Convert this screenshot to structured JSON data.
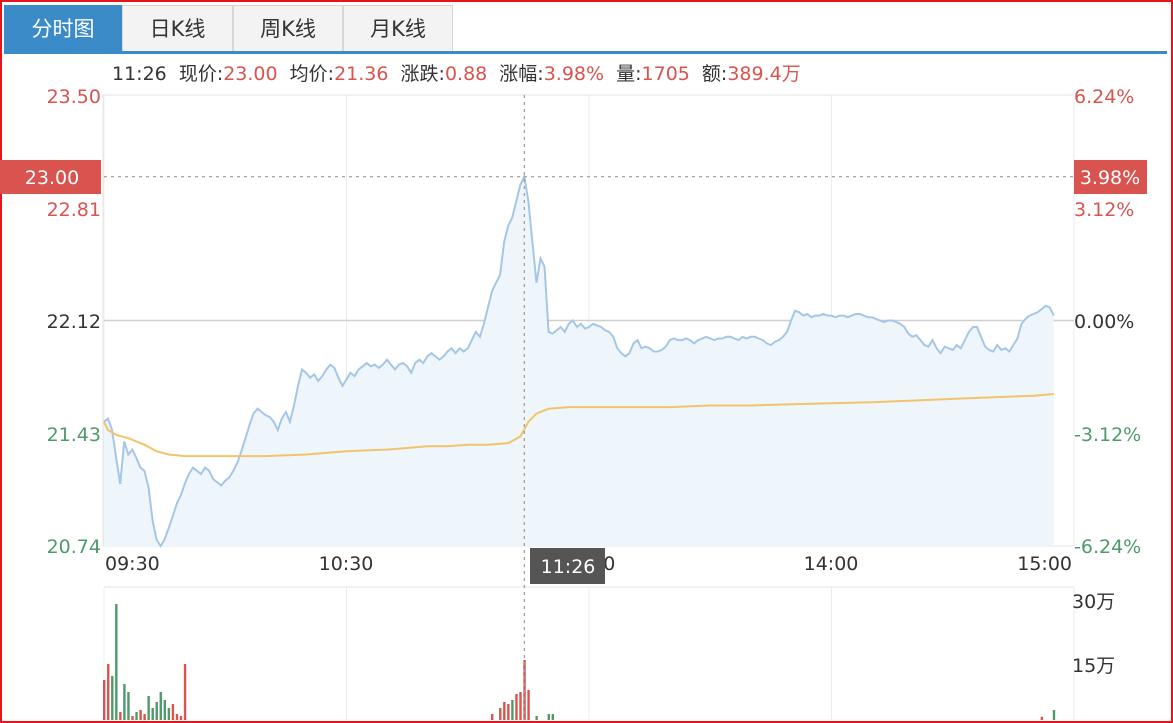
{
  "tabs": [
    {
      "label": "分时图",
      "active": true
    },
    {
      "label": "日K线",
      "active": false
    },
    {
      "label": "周K线",
      "active": false
    },
    {
      "label": "月K线",
      "active": false
    }
  ],
  "info_bar": {
    "time": "11:26",
    "price_label": "现价:",
    "price": "23.00",
    "avg_label": "均价:",
    "avg": "21.36",
    "change_label": "涨跌:",
    "change": "0.88",
    "pct_label": "涨幅:",
    "pct": "3.98%",
    "vol_label": "量:",
    "vol": "1705",
    "amount_label": "额:",
    "amount": "389.4万"
  },
  "crosshair": {
    "time": "11:26",
    "price": "23.00",
    "pct": "3.98%"
  },
  "colors": {
    "up": "#d9534f",
    "down": "#4f9a6a",
    "neutral": "#333333",
    "price_line": "#a6c6e6",
    "avg_line": "#f2c36b",
    "fill": "#eef6fc",
    "tab_active": "#3b8bc8"
  },
  "chart_data": {
    "type": "line",
    "prev_close": 22.12,
    "ylim": [
      20.74,
      23.5
    ],
    "y_ticks_left": [
      "23.50",
      "22.81",
      "22.12",
      "21.43",
      "20.74"
    ],
    "y_ticks_right": [
      "6.24%",
      "3.12%",
      "0.00%",
      "-3.12%",
      "-6.24%"
    ],
    "x_ticks": [
      "09:30",
      "10:30",
      "13:00",
      "14:00",
      "15:00"
    ],
    "volume_ticks": [
      "30万",
      "15万"
    ],
    "price_series": [
      [
        0,
        21.5
      ],
      [
        1,
        21.52
      ],
      [
        2,
        21.45
      ],
      [
        3,
        21.28
      ],
      [
        4,
        21.12
      ],
      [
        5,
        21.38
      ],
      [
        6,
        21.3
      ],
      [
        7,
        21.33
      ],
      [
        8,
        21.28
      ],
      [
        9,
        21.22
      ],
      [
        10,
        21.2
      ],
      [
        11,
        21.1
      ],
      [
        12,
        20.9
      ],
      [
        13,
        20.78
      ],
      [
        14,
        20.74
      ],
      [
        15,
        20.78
      ],
      [
        16,
        20.85
      ],
      [
        17,
        20.92
      ],
      [
        18,
        21.0
      ],
      [
        19,
        21.05
      ],
      [
        20,
        21.12
      ],
      [
        21,
        21.18
      ],
      [
        22,
        21.22
      ],
      [
        23,
        21.2
      ],
      [
        24,
        21.18
      ],
      [
        25,
        21.22
      ],
      [
        26,
        21.2
      ],
      [
        27,
        21.15
      ],
      [
        28,
        21.13
      ],
      [
        29,
        21.11
      ],
      [
        30,
        21.14
      ],
      [
        31,
        21.16
      ],
      [
        32,
        21.2
      ],
      [
        33,
        21.25
      ],
      [
        34,
        21.32
      ],
      [
        35,
        21.4
      ],
      [
        36,
        21.48
      ],
      [
        37,
        21.55
      ],
      [
        38,
        21.58
      ],
      [
        39,
        21.56
      ],
      [
        40,
        21.54
      ],
      [
        41,
        21.53
      ],
      [
        42,
        21.5
      ],
      [
        43,
        21.45
      ],
      [
        44,
        21.52
      ],
      [
        45,
        21.56
      ],
      [
        46,
        21.5
      ],
      [
        47,
        21.6
      ],
      [
        48,
        21.72
      ],
      [
        49,
        21.82
      ],
      [
        50,
        21.8
      ],
      [
        51,
        21.77
      ],
      [
        52,
        21.79
      ],
      [
        53,
        21.75
      ],
      [
        54,
        21.78
      ],
      [
        55,
        21.82
      ],
      [
        56,
        21.85
      ],
      [
        57,
        21.83
      ],
      [
        58,
        21.77
      ],
      [
        59,
        21.72
      ],
      [
        60,
        21.76
      ],
      [
        61,
        21.8
      ],
      [
        62,
        21.78
      ],
      [
        63,
        21.82
      ],
      [
        64,
        21.84
      ],
      [
        65,
        21.86
      ],
      [
        66,
        21.84
      ],
      [
        67,
        21.85
      ],
      [
        68,
        21.83
      ],
      [
        69,
        21.85
      ],
      [
        70,
        21.88
      ],
      [
        71,
        21.85
      ],
      [
        72,
        21.82
      ],
      [
        73,
        21.85
      ],
      [
        74,
        21.86
      ],
      [
        75,
        21.84
      ],
      [
        76,
        21.8
      ],
      [
        77,
        21.86
      ],
      [
        78,
        21.88
      ],
      [
        79,
        21.86
      ],
      [
        80,
        21.9
      ],
      [
        81,
        21.92
      ],
      [
        82,
        21.9
      ],
      [
        83,
        21.88
      ],
      [
        84,
        21.9
      ],
      [
        85,
        21.93
      ],
      [
        86,
        21.95
      ],
      [
        87,
        21.92
      ],
      [
        88,
        21.95
      ],
      [
        89,
        21.93
      ],
      [
        90,
        21.95
      ],
      [
        91,
        22.0
      ],
      [
        92,
        22.05
      ],
      [
        93,
        22.02
      ],
      [
        94,
        22.1
      ],
      [
        95,
        22.2
      ],
      [
        96,
        22.3
      ],
      [
        97,
        22.35
      ],
      [
        98,
        22.4
      ],
      [
        99,
        22.6
      ],
      [
        100,
        22.7
      ],
      [
        101,
        22.75
      ],
      [
        102,
        22.85
      ],
      [
        103,
        22.95
      ],
      [
        104,
        23.0
      ],
      [
        105,
        22.85
      ],
      [
        106,
        22.6
      ],
      [
        107,
        22.35
      ],
      [
        108,
        22.5
      ],
      [
        109,
        22.45
      ],
      [
        110,
        22.05
      ],
      [
        111,
        22.04
      ],
      [
        112,
        22.06
      ],
      [
        113,
        22.08
      ],
      [
        114,
        22.05
      ],
      [
        115,
        22.1
      ],
      [
        116,
        22.12
      ],
      [
        117,
        22.08
      ],
      [
        118,
        22.1
      ],
      [
        119,
        22.07
      ],
      [
        120,
        22.08
      ],
      [
        121,
        22.1
      ],
      [
        122,
        22.09
      ],
      [
        123,
        22.08
      ],
      [
        124,
        22.06
      ],
      [
        125,
        22.05
      ],
      [
        126,
        22.02
      ],
      [
        127,
        21.95
      ],
      [
        128,
        21.92
      ],
      [
        129,
        21.9
      ],
      [
        130,
        21.92
      ],
      [
        131,
        21.98
      ],
      [
        132,
        22.0
      ],
      [
        133,
        21.95
      ],
      [
        134,
        21.96
      ],
      [
        135,
        21.95
      ],
      [
        136,
        21.93
      ],
      [
        137,
        21.93
      ],
      [
        138,
        21.94
      ],
      [
        139,
        21.96
      ],
      [
        140,
        22.0
      ],
      [
        141,
        22.01
      ],
      [
        142,
        22.0
      ],
      [
        143,
        22.0
      ],
      [
        144,
        22.01
      ],
      [
        145,
        22.0
      ],
      [
        146,
        21.98
      ],
      [
        147,
        22.0
      ],
      [
        148,
        22.01
      ],
      [
        149,
        22.02
      ],
      [
        150,
        22.01
      ],
      [
        151,
        22.0
      ],
      [
        152,
        22.01
      ],
      [
        153,
        22.01
      ],
      [
        154,
        22.02
      ],
      [
        155,
        22.02
      ],
      [
        156,
        22.01
      ],
      [
        157,
        22.0
      ],
      [
        158,
        22.02
      ],
      [
        159,
        22.01
      ],
      [
        160,
        22.02
      ],
      [
        161,
        22.02
      ],
      [
        162,
        22.01
      ],
      [
        163,
        22.0
      ],
      [
        164,
        21.98
      ],
      [
        165,
        21.97
      ],
      [
        166,
        21.99
      ],
      [
        167,
        22.0
      ],
      [
        168,
        22.02
      ],
      [
        169,
        22.05
      ],
      [
        170,
        22.12
      ],
      [
        171,
        22.18
      ],
      [
        172,
        22.17
      ],
      [
        173,
        22.15
      ],
      [
        174,
        22.16
      ],
      [
        175,
        22.14
      ],
      [
        176,
        22.15
      ],
      [
        177,
        22.15
      ],
      [
        178,
        22.16
      ],
      [
        179,
        22.15
      ],
      [
        180,
        22.15
      ],
      [
        181,
        22.14
      ],
      [
        182,
        22.15
      ],
      [
        183,
        22.15
      ],
      [
        184,
        22.14
      ],
      [
        185,
        22.15
      ],
      [
        186,
        22.16
      ],
      [
        187,
        22.16
      ],
      [
        188,
        22.15
      ],
      [
        189,
        22.14
      ],
      [
        190,
        22.14
      ],
      [
        191,
        22.13
      ],
      [
        192,
        22.12
      ],
      [
        193,
        22.11
      ],
      [
        194,
        22.12
      ],
      [
        195,
        22.12
      ],
      [
        196,
        22.11
      ],
      [
        197,
        22.1
      ],
      [
        198,
        22.08
      ],
      [
        199,
        22.04
      ],
      [
        200,
        22.02
      ],
      [
        201,
        22.03
      ],
      [
        202,
        22.0
      ],
      [
        203,
        21.97
      ],
      [
        204,
        21.96
      ],
      [
        205,
        22.0
      ],
      [
        206,
        21.95
      ],
      [
        207,
        21.92
      ],
      [
        208,
        21.96
      ],
      [
        209,
        21.95
      ],
      [
        210,
        21.94
      ],
      [
        211,
        21.97
      ],
      [
        212,
        21.95
      ],
      [
        213,
        22.0
      ],
      [
        214,
        22.05
      ],
      [
        215,
        22.08
      ],
      [
        216,
        22.08
      ],
      [
        217,
        22.02
      ],
      [
        218,
        21.96
      ],
      [
        219,
        21.94
      ],
      [
        220,
        21.93
      ],
      [
        221,
        21.97
      ],
      [
        222,
        21.94
      ],
      [
        223,
        21.95
      ],
      [
        224,
        21.93
      ],
      [
        225,
        21.97
      ],
      [
        226,
        22.01
      ],
      [
        227,
        22.1
      ],
      [
        228,
        22.13
      ],
      [
        229,
        22.15
      ],
      [
        230,
        22.16
      ],
      [
        231,
        22.17
      ],
      [
        232,
        22.19
      ],
      [
        233,
        22.21
      ],
      [
        234,
        22.2
      ],
      [
        235,
        22.15
      ]
    ],
    "avg_series": [
      [
        0,
        21.5
      ],
      [
        1,
        21.45
      ],
      [
        3,
        21.42
      ],
      [
        6,
        21.4
      ],
      [
        10,
        21.36
      ],
      [
        13,
        21.32
      ],
      [
        16,
        21.3
      ],
      [
        20,
        21.29
      ],
      [
        30,
        21.29
      ],
      [
        40,
        21.29
      ],
      [
        50,
        21.3
      ],
      [
        55,
        21.31
      ],
      [
        60,
        21.32
      ],
      [
        70,
        21.33
      ],
      [
        75,
        21.34
      ],
      [
        80,
        21.35
      ],
      [
        85,
        21.35
      ],
      [
        90,
        21.36
      ],
      [
        95,
        21.36
      ],
      [
        100,
        21.37
      ],
      [
        103,
        21.41
      ],
      [
        105,
        21.5
      ],
      [
        107,
        21.55
      ],
      [
        110,
        21.58
      ],
      [
        115,
        21.59
      ],
      [
        130,
        21.59
      ],
      [
        140,
        21.59
      ],
      [
        150,
        21.6
      ],
      [
        160,
        21.6
      ],
      [
        175,
        21.61
      ],
      [
        190,
        21.62
      ],
      [
        200,
        21.63
      ],
      [
        210,
        21.64
      ],
      [
        220,
        21.65
      ],
      [
        230,
        21.66
      ],
      [
        235,
        21.67
      ]
    ],
    "volume_max": 300000,
    "volume_bars": [
      {
        "t": 0,
        "v": 100000,
        "dir": "up"
      },
      {
        "t": 1,
        "v": 140000,
        "dir": "up"
      },
      {
        "t": 2,
        "v": 110000,
        "dir": "down"
      },
      {
        "t": 3,
        "v": 290000,
        "dir": "down"
      },
      {
        "t": 4,
        "v": 20000,
        "dir": "up"
      },
      {
        "t": 5,
        "v": 90000,
        "dir": "down"
      },
      {
        "t": 6,
        "v": 70000,
        "dir": "down"
      },
      {
        "t": 7,
        "v": 10000,
        "dir": "up"
      },
      {
        "t": 8,
        "v": 20000,
        "dir": "down"
      },
      {
        "t": 9,
        "v": 25000,
        "dir": "up"
      },
      {
        "t": 10,
        "v": 15000,
        "dir": "up"
      },
      {
        "t": 11,
        "v": 60000,
        "dir": "down"
      },
      {
        "t": 12,
        "v": 30000,
        "dir": "down"
      },
      {
        "t": 13,
        "v": 45000,
        "dir": "down"
      },
      {
        "t": 14,
        "v": 70000,
        "dir": "down"
      },
      {
        "t": 15,
        "v": 50000,
        "dir": "down"
      },
      {
        "t": 16,
        "v": 30000,
        "dir": "down"
      },
      {
        "t": 17,
        "v": 40000,
        "dir": "up"
      },
      {
        "t": 18,
        "v": 15000,
        "dir": "up"
      },
      {
        "t": 19,
        "v": 10000,
        "dir": "up"
      },
      {
        "t": 20,
        "v": 140000,
        "dir": "up"
      },
      {
        "t": 96,
        "v": 15000,
        "dir": "up"
      },
      {
        "t": 98,
        "v": 30000,
        "dir": "up"
      },
      {
        "t": 99,
        "v": 45000,
        "dir": "up"
      },
      {
        "t": 100,
        "v": 40000,
        "dir": "up"
      },
      {
        "t": 101,
        "v": 50000,
        "dir": "down"
      },
      {
        "t": 102,
        "v": 65000,
        "dir": "up"
      },
      {
        "t": 103,
        "v": 70000,
        "dir": "up"
      },
      {
        "t": 104,
        "v": 150000,
        "dir": "up"
      },
      {
        "t": 105,
        "v": 75000,
        "dir": "up"
      },
      {
        "t": 107,
        "v": 10000,
        "dir": "down"
      },
      {
        "t": 110,
        "v": 15000,
        "dir": "down"
      },
      {
        "t": 111,
        "v": 15000,
        "dir": "down"
      },
      {
        "t": 232,
        "v": 8000,
        "dir": "up"
      },
      {
        "t": 235,
        "v": 25000,
        "dir": "down"
      }
    ]
  }
}
